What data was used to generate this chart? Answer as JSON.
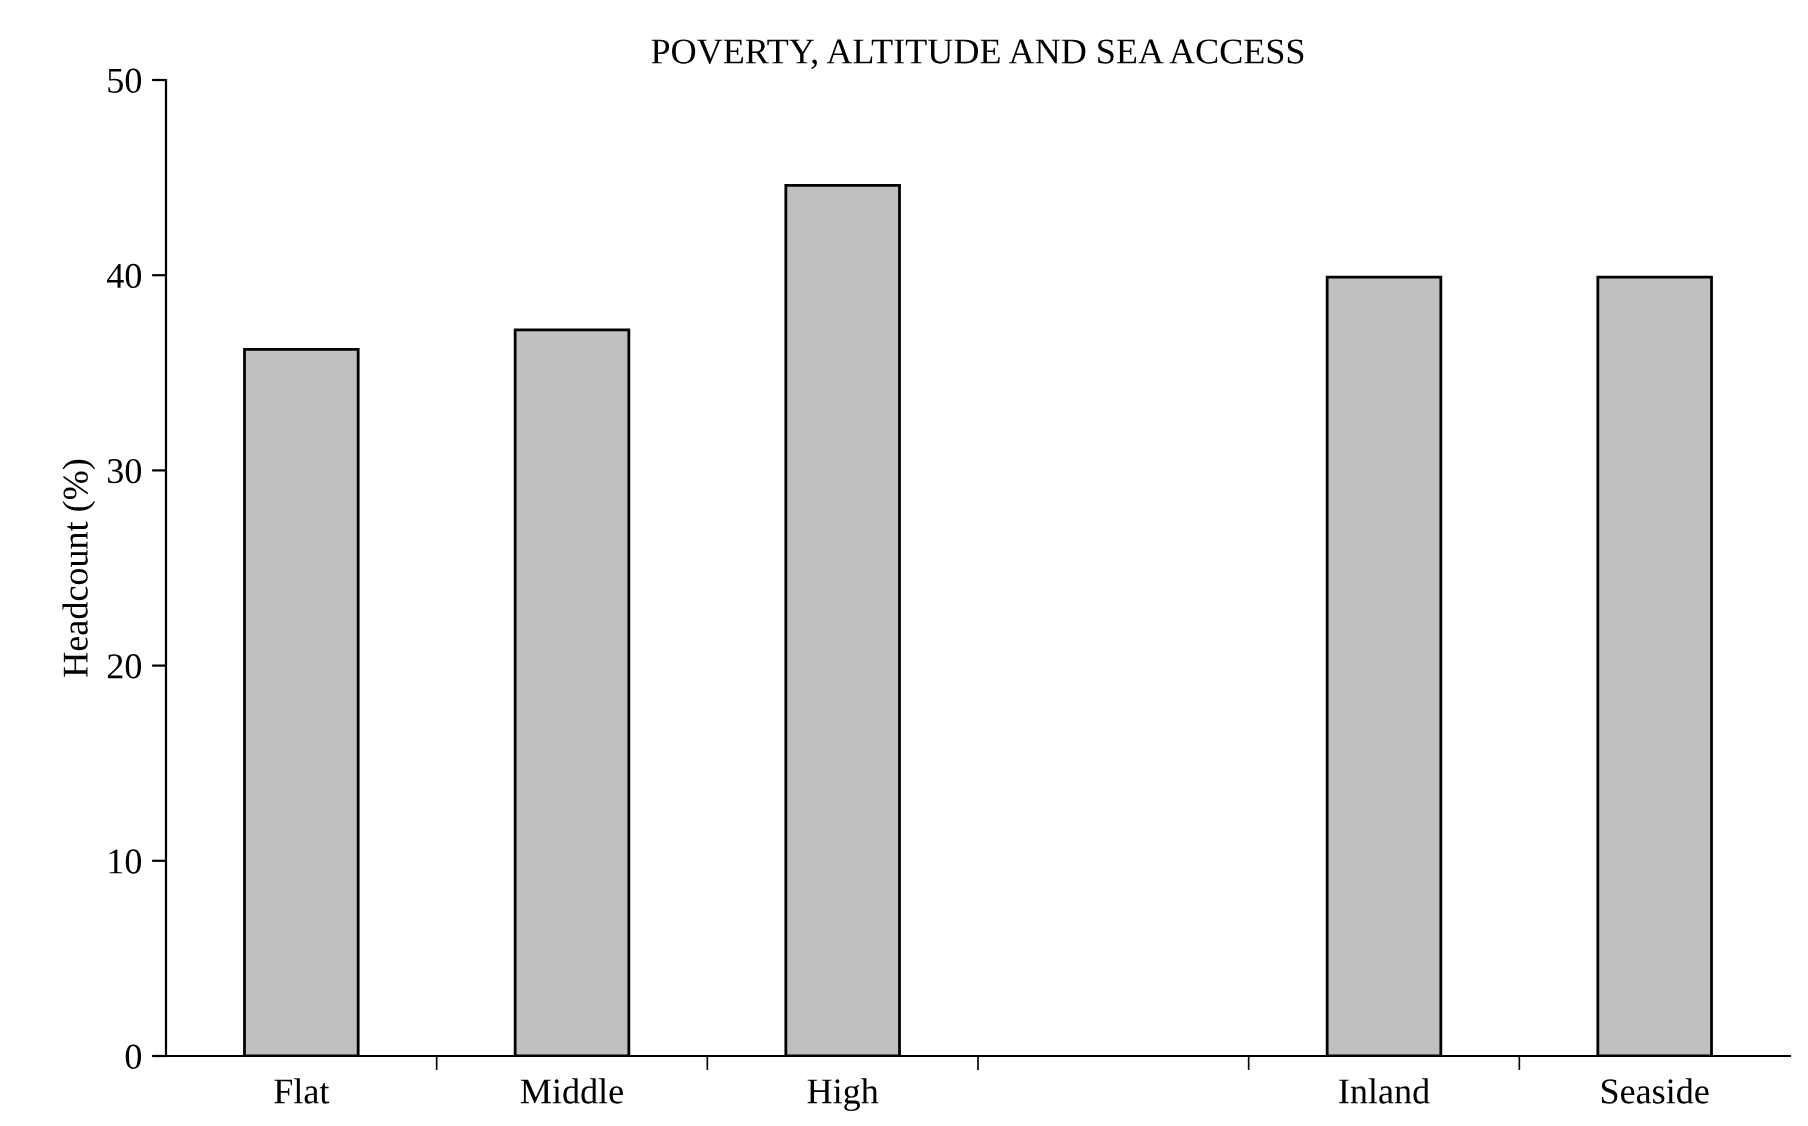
{
  "chart_data": {
    "type": "bar",
    "title": "POVERTY, ALTITUDE AND SEA ACCESS",
    "ylabel": "Headcount (%)",
    "categories": [
      "Flat",
      "Middle",
      "High",
      null,
      "Inland",
      "Seaside"
    ],
    "values": [
      36.2,
      37.2,
      44.6,
      null,
      39.9,
      39.9
    ],
    "color": "#c0c0c0",
    "ylim": [
      0,
      50
    ],
    "yticks": [
      0,
      10,
      20,
      30,
      40,
      50
    ],
    "grid": false,
    "legend": false
  }
}
